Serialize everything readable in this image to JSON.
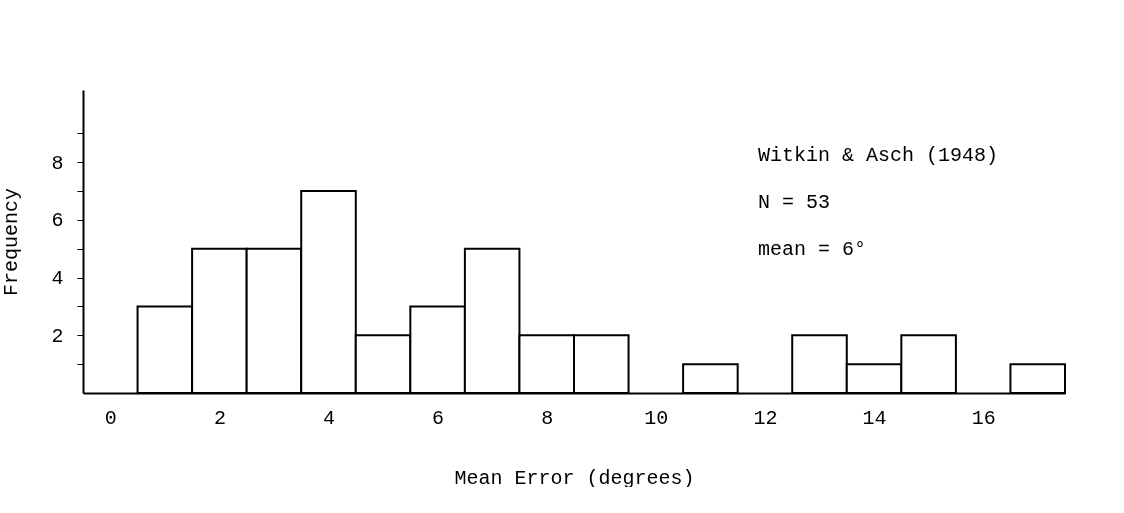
{
  "chart_data": {
    "type": "histogram",
    "xlabel": "Mean Error (degrees)",
    "ylabel": "Frequency",
    "annotations": [
      "Witkin & Asch (1948)",
      "N = 53",
      "mean = 6°"
    ],
    "bins": [
      0.5,
      1.5,
      2.5,
      3.5,
      4.5,
      5.5,
      6.5,
      7.5,
      8.5,
      9.5,
      10.5,
      11.5,
      12.5,
      13.5,
      14.5,
      15.5,
      16.5,
      17.5
    ],
    "values": [
      3,
      5,
      5,
      7,
      2,
      3,
      5,
      2,
      2,
      0,
      1,
      0,
      2,
      1,
      2,
      0,
      1
    ],
    "color": "#ffffff",
    "xlim": [
      -0.5,
      17.5
    ],
    "xticks": [
      0,
      2,
      4,
      6,
      8,
      10,
      12,
      14,
      16
    ],
    "ylim": [
      0,
      10.5
    ],
    "yticks": [
      {
        "value": 1,
        "label": null
      },
      2,
      {
        "value": 3,
        "label": null
      },
      4,
      {
        "value": 5,
        "label": null
      },
      6,
      {
        "value": 7,
        "label": null
      },
      8,
      {
        "value": 9,
        "label": null
      }
    ],
    "grid": false
  }
}
